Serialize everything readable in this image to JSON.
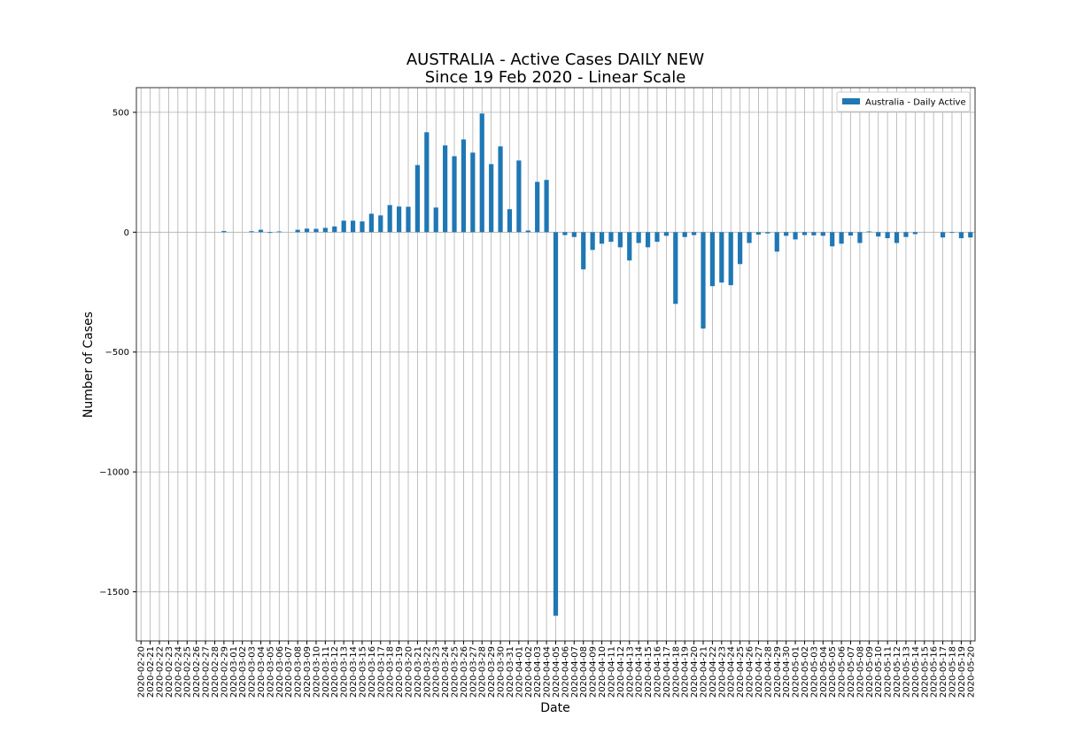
{
  "chart_data": {
    "type": "bar",
    "title": "AUSTRALIA - Active Cases DAILY NEW",
    "subtitle": "Since 19 Feb 2020 - Linear Scale",
    "x_label": "Date",
    "y_label": "Number of Cases",
    "categories": [
      "2020-02-20",
      "2020-02-21",
      "2020-02-22",
      "2020-02-23",
      "2020-02-24",
      "2020-02-25",
      "2020-02-26",
      "2020-02-27",
      "2020-02-28",
      "2020-02-29",
      "2020-03-01",
      "2020-03-02",
      "2020-03-03",
      "2020-03-04",
      "2020-03-05",
      "2020-03-06",
      "2020-03-07",
      "2020-03-08",
      "2020-03-09",
      "2020-03-10",
      "2020-03-11",
      "2020-03-12",
      "2020-03-13",
      "2020-03-14",
      "2020-03-15",
      "2020-03-16",
      "2020-03-17",
      "2020-03-18",
      "2020-03-19",
      "2020-03-20",
      "2020-03-21",
      "2020-03-22",
      "2020-03-23",
      "2020-03-24",
      "2020-03-25",
      "2020-03-26",
      "2020-03-27",
      "2020-03-28",
      "2020-03-29",
      "2020-03-30",
      "2020-03-31",
      "2020-04-01",
      "2020-04-02",
      "2020-04-03",
      "2020-04-04",
      "2020-04-05",
      "2020-04-06",
      "2020-04-07",
      "2020-04-08",
      "2020-04-09",
      "2020-04-10",
      "2020-04-11",
      "2020-04-12",
      "2020-04-13",
      "2020-04-14",
      "2020-04-15",
      "2020-04-16",
      "2020-04-17",
      "2020-04-18",
      "2020-04-19",
      "2020-04-20",
      "2020-04-21",
      "2020-04-22",
      "2020-04-23",
      "2020-04-24",
      "2020-04-25",
      "2020-04-26",
      "2020-04-27",
      "2020-04-28",
      "2020-04-29",
      "2020-04-30",
      "2020-05-01",
      "2020-05-02",
      "2020-05-03",
      "2020-05-04",
      "2020-05-05",
      "2020-05-06",
      "2020-05-07",
      "2020-05-08",
      "2020-05-09",
      "2020-05-10",
      "2020-05-11",
      "2020-05-12",
      "2020-05-13",
      "2020-05-14",
      "2020-05-15",
      "2020-05-16",
      "2020-05-17",
      "2020-05-18",
      "2020-05-19",
      "2020-05-20"
    ],
    "series": [
      {
        "name": "Australia - Daily Active",
        "color": "#1f77b4",
        "values": [
          0,
          0,
          0,
          0,
          0,
          0,
          0,
          0,
          0,
          5,
          0,
          0,
          4,
          10,
          -3,
          3,
          0,
          10,
          15,
          14,
          18,
          24,
          48,
          48,
          45,
          77,
          70,
          113,
          107,
          106,
          280,
          417,
          103,
          362,
          317,
          387,
          332,
          495,
          284,
          358,
          96,
          299,
          7,
          210,
          218,
          -1600,
          -12,
          -20,
          -155,
          -74,
          -48,
          -40,
          -63,
          -118,
          -45,
          -63,
          -40,
          -15,
          -299,
          -20,
          -12,
          -402,
          -225,
          -210,
          -221,
          -133,
          -45,
          -10,
          -5,
          -81,
          -15,
          -30,
          -12,
          -13,
          -15,
          -59,
          -48,
          -14,
          -45,
          3,
          -18,
          -25,
          -45,
          -20,
          -8,
          0,
          0,
          -22,
          -3,
          -25,
          -22
        ]
      }
    ],
    "ylim": [
      -1705,
      603
    ],
    "yticks": [
      {
        "value": -1500,
        "label": "−1500"
      },
      {
        "value": -1000,
        "label": "−1000"
      },
      {
        "value": -500,
        "label": "−500"
      },
      0,
      500
    ],
    "grid": true,
    "legend": "upper right"
  }
}
